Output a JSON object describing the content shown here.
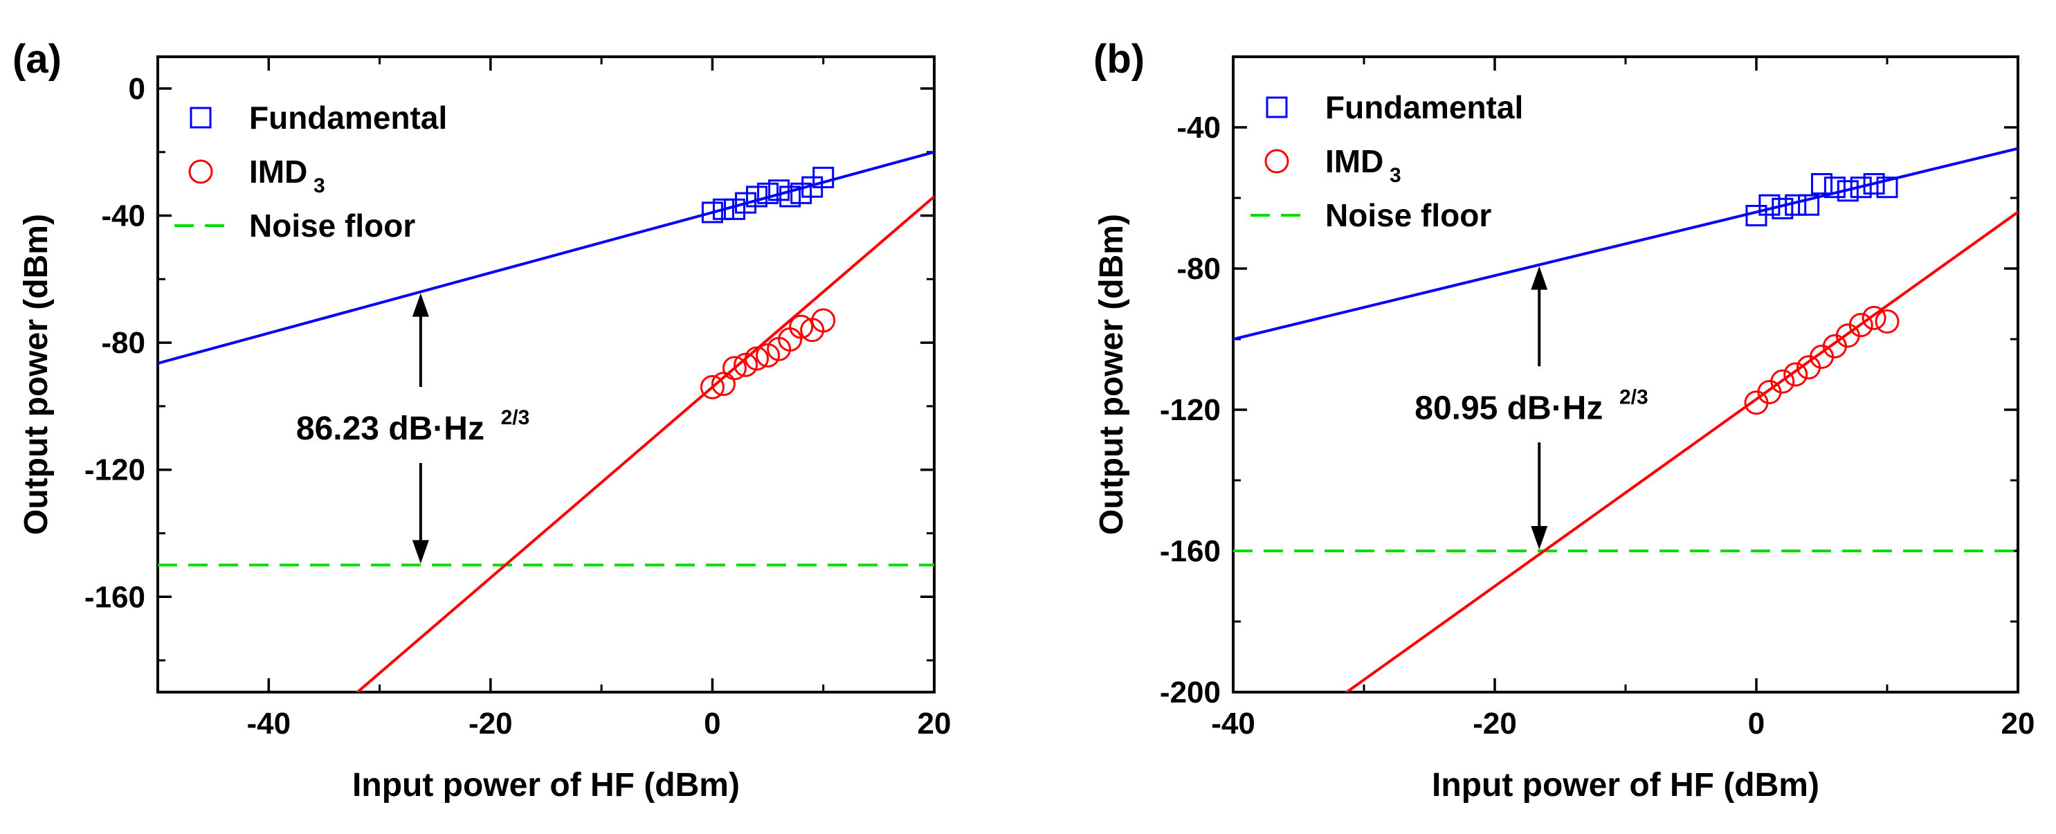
{
  "colors": {
    "fundamental": "#0000ff",
    "imd3": "#ff0000",
    "noise_floor": "#00dd00",
    "axis": "#000000"
  },
  "chart_data": [
    {
      "panel": "(a)",
      "type": "scatter",
      "xlabel": "Input power of HF (dBm)",
      "ylabel": "Output power (dBm)",
      "xlim": [
        -50,
        20
      ],
      "ylim": [
        -190,
        10
      ],
      "xticks": [
        -40,
        -20,
        0,
        20
      ],
      "yticks": [
        0,
        -40,
        -80,
        -120,
        -160
      ],
      "legend": {
        "placement": "top-left",
        "fundamental": "Fundamental",
        "imd3_base": "IMD",
        "imd3_sub": "3",
        "noise": "Noise floor"
      },
      "fundamental_points": {
        "x": [
          0,
          1,
          2,
          3,
          4,
          5,
          6,
          7,
          8,
          9,
          10
        ],
        "y": [
          -39,
          -38,
          -38,
          -36,
          -34,
          -33,
          -32,
          -34,
          -33,
          -31,
          -28
        ]
      },
      "imd3_points": {
        "x": [
          0,
          1,
          2,
          3,
          4,
          5,
          6,
          7,
          8,
          9,
          10
        ],
        "y": [
          -94,
          -93,
          -88,
          -87,
          -85,
          -84,
          -82,
          -79,
          -75,
          -76,
          -73
        ]
      },
      "fundamental_fit": {
        "slope": 0.95,
        "intercept": -39
      },
      "imd3_fit": {
        "slope": 3.0,
        "intercept": -94
      },
      "noise_floor": -150,
      "sfdr_x": -26.3,
      "annotation": {
        "text": "86.23 dB·Hz",
        "sup": "2/3"
      }
    },
    {
      "panel": "(b)",
      "type": "scatter",
      "xlabel": "Input power of HF (dBm)",
      "ylabel": "Output power (dBm)",
      "xlim": [
        -40,
        20
      ],
      "ylim": [
        -200,
        -20
      ],
      "xticks": [
        -40,
        -20,
        0,
        20
      ],
      "yticks": [
        -40,
        -80,
        -120,
        -160,
        -200
      ],
      "legend": {
        "placement": "top-left",
        "fundamental": "Fundamental",
        "imd3_base": "IMD",
        "imd3_sub": "3",
        "noise": "Noise floor"
      },
      "fundamental_points": {
        "x": [
          0,
          1,
          2,
          3,
          4,
          5,
          6,
          7,
          8,
          9,
          10
        ],
        "y": [
          -65,
          -62,
          -63,
          -62,
          -62,
          -56,
          -57,
          -58,
          -57,
          -56,
          -57
        ]
      },
      "imd3_points": {
        "x": [
          0,
          1,
          2,
          3,
          4,
          5,
          6,
          7,
          8,
          9,
          10
        ],
        "y": [
          -118,
          -115,
          -112,
          -110,
          -108,
          -105,
          -102,
          -99,
          -96,
          -94,
          -95
        ]
      },
      "fundamental_fit": {
        "slope": 0.9,
        "intercept": -64
      },
      "imd3_fit": {
        "slope": 2.65,
        "intercept": -117
      },
      "noise_floor": -160,
      "sfdr_x": -16.6,
      "annotation": {
        "text": "80.95 dB·Hz",
        "sup": "2/3"
      }
    }
  ]
}
